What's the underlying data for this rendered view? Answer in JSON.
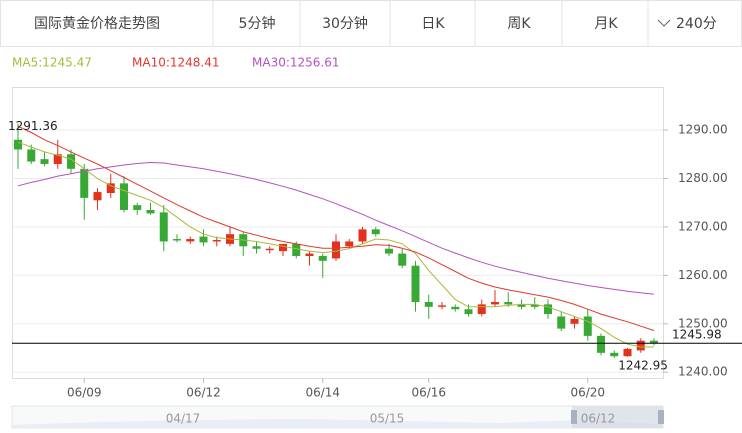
{
  "header": {
    "title": "国际黄金价格走势图",
    "tabs": [
      "5分钟",
      "30分钟",
      "日K",
      "周K",
      "月K",
      "240分"
    ]
  },
  "chart_data": {
    "type": "candlestick",
    "categories": [
      null,
      null,
      null,
      null,
      null,
      "06/09",
      null,
      null,
      null,
      null,
      null,
      null,
      null,
      null,
      "06/12",
      null,
      null,
      null,
      null,
      null,
      null,
      null,
      null,
      "06/14",
      null,
      null,
      null,
      null,
      null,
      null,
      null,
      "06/16",
      null,
      null,
      null,
      null,
      null,
      null,
      null,
      null,
      null,
      null,
      null,
      "06/20",
      null,
      null,
      null,
      null,
      null
    ],
    "open": [
      1288,
      1286,
      1284,
      1283,
      1285,
      1282,
      1275.5,
      1277,
      1279,
      1274.5,
      1273.5,
      1273,
      1267.5,
      1267,
      1268,
      1267,
      1266.5,
      1268.5,
      1266,
      1265.2,
      1265,
      1266.5,
      1264,
      1264,
      1263.5,
      1266,
      1267,
      1269.5,
      1265.5,
      1264.5,
      1262,
      1254.5,
      1253.5,
      1253.5,
      1253,
      1252,
      1254,
      1254.5,
      1254,
      1254,
      1254,
      1251.5,
      1250,
      1251.5,
      1247.5,
      1244,
      1243.3,
      1244.5,
      1246.5
    ],
    "high": [
      1291.36,
      1287,
      1285.5,
      1288,
      1286,
      1283,
      1278,
      1281,
      1280.5,
      1275,
      1275,
      1274.5,
      1268.5,
      1268,
      1269.5,
      1268,
      1270,
      1269,
      1267,
      1266,
      1266.5,
      1267,
      1265,
      1264.5,
      1268.5,
      1267.5,
      1270,
      1270,
      1266.5,
      1265.5,
      1263,
      1256,
      1254.5,
      1254,
      1254,
      1255,
      1257,
      1256.5,
      1255,
      1255.5,
      1255,
      1252.5,
      1251.5,
      1253,
      1248,
      1244.5,
      1245,
      1247,
      1247
    ],
    "low": [
      1282,
      1283,
      1282.5,
      1282,
      1281,
      1271.5,
      1273.5,
      1276,
      1273,
      1272.5,
      1272.5,
      1265,
      1266.8,
      1266.5,
      1266,
      1266,
      1266,
      1264,
      1264.5,
      1264.5,
      1264,
      1263.5,
      1262,
      1259.5,
      1263,
      1265.5,
      1266.5,
      1268,
      1264,
      1261.5,
      1252.5,
      1251,
      1253,
      1252.5,
      1251.5,
      1251.5,
      1253.5,
      1253.5,
      1253,
      1253,
      1251,
      1248.5,
      1249,
      1246.5,
      1243.5,
      1242.95,
      1243.2,
      1244,
      1245.5
    ],
    "close": [
      1286,
      1283.5,
      1283,
      1285,
      1282,
      1276,
      1277.2,
      1279,
      1273.5,
      1273.5,
      1272.8,
      1267,
      1267.2,
      1267.5,
      1266.8,
      1267.3,
      1268.5,
      1266,
      1265.5,
      1265.5,
      1266.5,
      1264,
      1264.5,
      1263,
      1267,
      1267,
      1269.5,
      1268.5,
      1264.5,
      1262,
      1254.5,
      1253.5,
      1253.8,
      1253,
      1252,
      1254,
      1254.5,
      1254,
      1253.5,
      1253.5,
      1252,
      1249,
      1251,
      1247.5,
      1244,
      1243.3,
      1244.8,
      1246.5,
      1245.98
    ],
    "up_color": "#e2321d",
    "down_color": "#39a935",
    "series": [
      {
        "name": "MA5:1245.47",
        "color": "#a9ba3c",
        "values": [
          1287.5,
          1286.5,
          1285.5,
          1284.8,
          1284,
          1282,
          1280,
          1278.5,
          1277.5,
          1276.5,
          1275.5,
          1274,
          1272,
          1270,
          1268.5,
          1267.8,
          1267.5,
          1267.3,
          1267,
          1266.5,
          1266,
          1265.5,
          1265,
          1264.7,
          1265,
          1265.5,
          1266.5,
          1267.5,
          1267.3,
          1266.5,
          1264.5,
          1261,
          1258,
          1255,
          1253.5,
          1253.5,
          1253.5,
          1253.8,
          1254,
          1254,
          1253.5,
          1252.5,
          1251.5,
          1250.5,
          1249,
          1247.2,
          1245.8,
          1245.2,
          1245.2
        ]
      },
      {
        "name": "MA10:1248.41",
        "color": "#e2382e",
        "values": [
          1290.8,
          1289.5,
          1288,
          1286.8,
          1285.5,
          1284.2,
          1283,
          1281.6,
          1280.2,
          1278.8,
          1277.4,
          1276,
          1274.6,
          1273.3,
          1272,
          1271,
          1270,
          1269,
          1268.3,
          1267.6,
          1267,
          1266.5,
          1266,
          1265.6,
          1265.6,
          1265.8,
          1266,
          1266.3,
          1266.2,
          1265.6,
          1264.8,
          1263.6,
          1262.2,
          1260.8,
          1259.4,
          1258.4,
          1257.6,
          1257,
          1256.5,
          1256,
          1255.5,
          1254.8,
          1254,
          1253,
          1252,
          1251.2,
          1250.4,
          1249.5,
          1248.6
        ]
      },
      {
        "name": "MA30:1256.61",
        "color": "#b551c2",
        "values": [
          1278.5,
          1279.2,
          1279.8,
          1280.5,
          1281,
          1281.5,
          1282,
          1282.4,
          1282.8,
          1283.1,
          1283.3,
          1283.2,
          1282.8,
          1282.4,
          1282,
          1281.5,
          1281,
          1280.4,
          1279.8,
          1279.1,
          1278.4,
          1277.6,
          1276.7,
          1275.8,
          1274.8,
          1273.7,
          1272.6,
          1271.4,
          1270.3,
          1269.2,
          1268,
          1266.8,
          1265.6,
          1264.6,
          1263.6,
          1262.7,
          1261.9,
          1261.2,
          1260.6,
          1260,
          1259.4,
          1258.9,
          1258.4,
          1257.9,
          1257.5,
          1257.1,
          1256.7,
          1256.4,
          1256.1
        ]
      }
    ],
    "ylim": [
      1238.8,
      1298.9
    ],
    "yticks": [
      {
        "value": 1240,
        "label": "1240.00"
      },
      {
        "value": 1250,
        "label": "1250.00"
      },
      {
        "value": 1260,
        "label": "1260.00"
      },
      {
        "value": 1270,
        "label": "1270.00"
      },
      {
        "value": 1280,
        "label": "1280.00"
      },
      {
        "value": 1290,
        "label": "1290.00"
      }
    ],
    "grid": true,
    "navigator_labels": [
      "04/17",
      "05/15",
      "06/12"
    ]
  }
}
